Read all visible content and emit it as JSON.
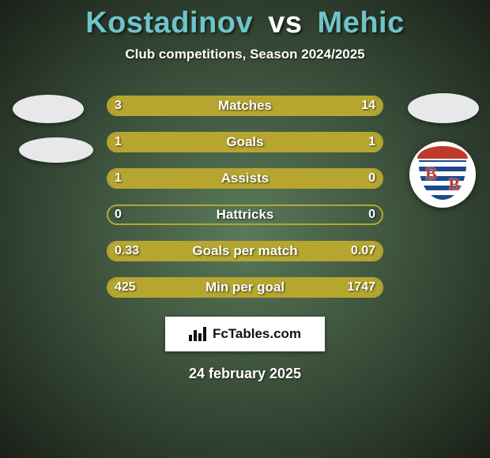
{
  "title": {
    "player1": "Kostadinov",
    "vs": "vs",
    "player2": "Mehic",
    "color_p1": "#6ec4c9",
    "color_p2": "#6ec4c9"
  },
  "subtitle": "Club competitions, Season 2024/2025",
  "bars": {
    "border_color": "#b6a62f",
    "fill_color": "#b6a62f",
    "empty_color": "transparent",
    "label_color": "#ffffff",
    "rows": [
      {
        "label": "Matches",
        "left": "3",
        "right": "14",
        "left_pct": 17.6,
        "right_pct": 82.4
      },
      {
        "label": "Goals",
        "left": "1",
        "right": "1",
        "left_pct": 50.0,
        "right_pct": 50.0
      },
      {
        "label": "Assists",
        "left": "1",
        "right": "0",
        "left_pct": 100.0,
        "right_pct": 0.0
      },
      {
        "label": "Hattricks",
        "left": "0",
        "right": "0",
        "left_pct": 0.0,
        "right_pct": 0.0
      },
      {
        "label": "Goals per match",
        "left": "0.33",
        "right": "0.07",
        "left_pct": 82.5,
        "right_pct": 17.5
      },
      {
        "label": "Min per goal",
        "left": "425",
        "right": "1747",
        "left_pct": 19.6,
        "right_pct": 80.4
      }
    ]
  },
  "branding": {
    "label": "FcTables.com"
  },
  "date": "24 february 2025",
  "club_badge": {
    "top_color": "#c0392b",
    "stripe_blue": "#1b4a8a",
    "stripe_white": "#ffffff",
    "letter": "B"
  }
}
